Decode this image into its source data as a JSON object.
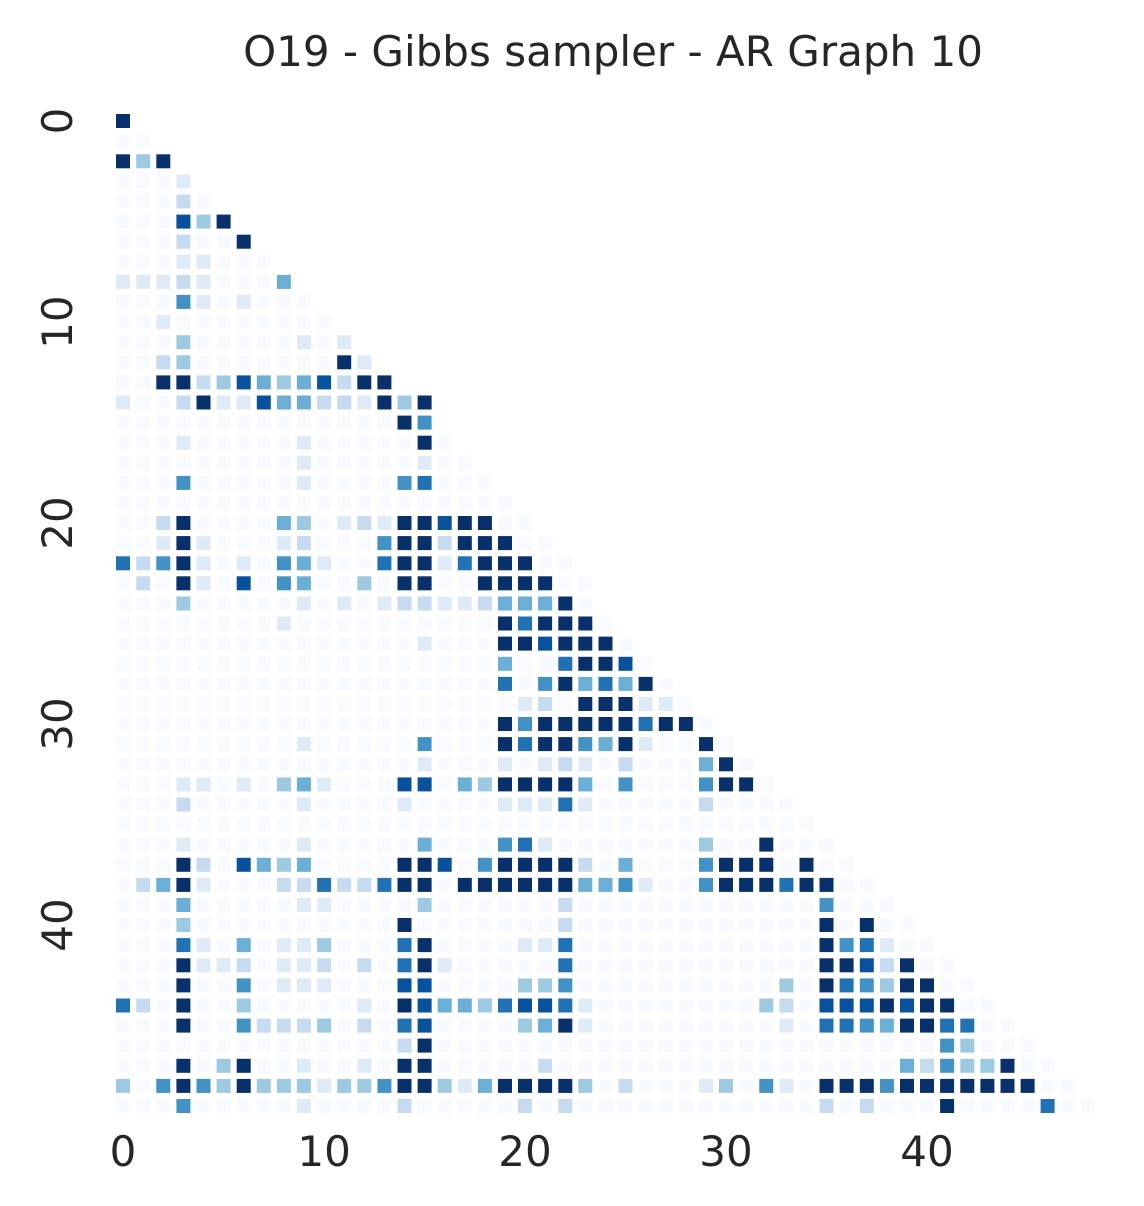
{
  "chart_data": {
    "type": "heatmap",
    "title": "O19 - Gibbs sampler - AR Graph 10",
    "n": 49,
    "mask": "upper-triangle",
    "colormap": "Blues",
    "colors": [
      "#f7fbff",
      "#deebf7",
      "#c6dbef",
      "#9ecae1",
      "#6baed6",
      "#4292c6",
      "#2171b5",
      "#08519c",
      "#08306b"
    ],
    "grid": false,
    "colorbar": false,
    "xticks": [
      0,
      10,
      20,
      30,
      40
    ],
    "yticks": [
      0,
      10,
      20,
      30,
      40
    ],
    "xticklabels": [
      "0",
      "10",
      "20",
      "30",
      "40"
    ],
    "yticklabels": [
      "0",
      "10",
      "20",
      "30",
      "40"
    ],
    "xlabel": "",
    "ylabel": "",
    "value_range": [
      0,
      8
    ],
    "value_scale": "0 = lightest blue, 8 = darkest navy (relative intensity, no colorbar shown)",
    "rows": [
      [
        8
      ],
      [
        0,
        0
      ],
      [
        8,
        3,
        8
      ],
      [
        0,
        0,
        0,
        1
      ],
      [
        0,
        0,
        0,
        2,
        0
      ],
      [
        0,
        0,
        0,
        7,
        3,
        8
      ],
      [
        0,
        0,
        0,
        2,
        0,
        0,
        8
      ],
      [
        0,
        0,
        0,
        1,
        1,
        0,
        0,
        0
      ],
      [
        1,
        1,
        1,
        2,
        1,
        0,
        0,
        0,
        4
      ],
      [
        0,
        0,
        0,
        5,
        1,
        0,
        1,
        0,
        0,
        0
      ],
      [
        0,
        0,
        1,
        0,
        0,
        0,
        0,
        0,
        0,
        0,
        0
      ],
      [
        0,
        0,
        0,
        3,
        0,
        0,
        0,
        0,
        0,
        1,
        0,
        1
      ],
      [
        0,
        0,
        2,
        3,
        0,
        0,
        0,
        0,
        0,
        0,
        0,
        8,
        1
      ],
      [
        0,
        0,
        8,
        8,
        2,
        3,
        7,
        4,
        3,
        4,
        7,
        2,
        8,
        8
      ],
      [
        1,
        0,
        0,
        2,
        8,
        1,
        1,
        7,
        4,
        4,
        2,
        2,
        1,
        8,
        3,
        8
      ],
      [
        0,
        0,
        0,
        0,
        0,
        0,
        0,
        0,
        0,
        0,
        0,
        0,
        0,
        0,
        8,
        5
      ],
      [
        0,
        0,
        0,
        1,
        0,
        0,
        0,
        0,
        0,
        1,
        0,
        0,
        0,
        0,
        0,
        8,
        0
      ],
      [
        0,
        0,
        0,
        0,
        0,
        0,
        0,
        0,
        0,
        1,
        0,
        0,
        0,
        0,
        0,
        1,
        0,
        0
      ],
      [
        0,
        0,
        0,
        5,
        0,
        0,
        0,
        0,
        0,
        1,
        0,
        0,
        0,
        0,
        5,
        6,
        0,
        0,
        0
      ],
      [
        0,
        0,
        0,
        0,
        0,
        0,
        0,
        0,
        0,
        0,
        0,
        0,
        0,
        0,
        0,
        0,
        0,
        0,
        0,
        0
      ],
      [
        0,
        0,
        2,
        8,
        0,
        0,
        0,
        0,
        4,
        3,
        0,
        1,
        2,
        1,
        8,
        8,
        7,
        8,
        8,
        0,
        0
      ],
      [
        0,
        0,
        1,
        8,
        1,
        0,
        0,
        0,
        1,
        2,
        0,
        0,
        0,
        5,
        8,
        8,
        2,
        8,
        8,
        8,
        0,
        0
      ],
      [
        6,
        2,
        5,
        8,
        1,
        0,
        1,
        0,
        5,
        4,
        1,
        0,
        0,
        6,
        8,
        8,
        1,
        6,
        8,
        8,
        8,
        0,
        0
      ],
      [
        0,
        2,
        0,
        8,
        1,
        0,
        7,
        0,
        5,
        4,
        0,
        0,
        3,
        0,
        8,
        8,
        0,
        0,
        8,
        8,
        8,
        8,
        0,
        0
      ],
      [
        0,
        0,
        0,
        3,
        0,
        0,
        0,
        0,
        0,
        1,
        0,
        1,
        0,
        1,
        2,
        2,
        1,
        1,
        2,
        4,
        4,
        4,
        8,
        0
      ],
      [
        0,
        0,
        0,
        0,
        0,
        0,
        0,
        0,
        1,
        0,
        0,
        0,
        0,
        0,
        0,
        0,
        0,
        0,
        0,
        8,
        6,
        8,
        8,
        8,
        0
      ],
      [
        0,
        0,
        0,
        0,
        0,
        0,
        0,
        0,
        0,
        0,
        0,
        0,
        0,
        0,
        0,
        1,
        0,
        0,
        0,
        8,
        8,
        7,
        8,
        8,
        8,
        0
      ],
      [
        0,
        0,
        0,
        0,
        0,
        0,
        0,
        0,
        0,
        0,
        0,
        0,
        0,
        0,
        0,
        0,
        0,
        0,
        0,
        4,
        0,
        0,
        6,
        8,
        8,
        7,
        0
      ],
      [
        0,
        0,
        0,
        0,
        0,
        0,
        0,
        0,
        0,
        0,
        0,
        0,
        0,
        0,
        0,
        0,
        0,
        0,
        0,
        6,
        0,
        5,
        8,
        4,
        6,
        4,
        8,
        0
      ],
      [
        0,
        0,
        0,
        0,
        0,
        0,
        0,
        0,
        0,
        0,
        0,
        0,
        0,
        0,
        0,
        0,
        0,
        0,
        0,
        0,
        1,
        2,
        0,
        8,
        8,
        8,
        1,
        1,
        0
      ],
      [
        0,
        0,
        0,
        0,
        0,
        0,
        0,
        0,
        0,
        0,
        0,
        0,
        0,
        0,
        0,
        0,
        0,
        0,
        0,
        8,
        5,
        8,
        8,
        8,
        8,
        8,
        6,
        8,
        8,
        0
      ],
      [
        0,
        0,
        0,
        0,
        0,
        0,
        0,
        0,
        0,
        1,
        0,
        0,
        0,
        0,
        0,
        5,
        0,
        0,
        0,
        8,
        6,
        8,
        8,
        5,
        4,
        8,
        1,
        0,
        0,
        8,
        0
      ],
      [
        0,
        0,
        0,
        0,
        0,
        0,
        0,
        0,
        0,
        0,
        0,
        0,
        0,
        0,
        0,
        1,
        0,
        0,
        0,
        1,
        0,
        1,
        2,
        1,
        0,
        2,
        0,
        0,
        0,
        4,
        8,
        0
      ],
      [
        0,
        0,
        0,
        1,
        1,
        0,
        1,
        0,
        3,
        4,
        1,
        0,
        0,
        0,
        7,
        7,
        0,
        4,
        3,
        8,
        8,
        8,
        8,
        4,
        0,
        5,
        0,
        0,
        0,
        5,
        8,
        8,
        0
      ],
      [
        0,
        0,
        0,
        2,
        0,
        0,
        0,
        0,
        0,
        1,
        0,
        0,
        0,
        0,
        1,
        0,
        0,
        0,
        0,
        1,
        1,
        1,
        6,
        1,
        0,
        0,
        0,
        0,
        0,
        2,
        0,
        0,
        0,
        0
      ],
      [
        0,
        0,
        0,
        0,
        0,
        0,
        0,
        0,
        0,
        0,
        0,
        0,
        0,
        0,
        0,
        0,
        0,
        0,
        0,
        0,
        0,
        0,
        0,
        0,
        0,
        0,
        0,
        0,
        0,
        0,
        0,
        0,
        0,
        0,
        0
      ],
      [
        0,
        0,
        0,
        1,
        0,
        0,
        0,
        0,
        0,
        1,
        0,
        0,
        0,
        0,
        0,
        4,
        0,
        0,
        0,
        5,
        6,
        1,
        0,
        0,
        0,
        0,
        0,
        0,
        0,
        3,
        0,
        0,
        8,
        0,
        0,
        0
      ],
      [
        0,
        0,
        0,
        8,
        2,
        0,
        7,
        4,
        3,
        4,
        0,
        0,
        0,
        0,
        8,
        8,
        7,
        0,
        5,
        8,
        8,
        8,
        8,
        2,
        0,
        4,
        0,
        0,
        0,
        5,
        8,
        8,
        8,
        0,
        8,
        0,
        0
      ],
      [
        0,
        2,
        4,
        8,
        1,
        0,
        0,
        0,
        2,
        2,
        6,
        2,
        2,
        6,
        8,
        8,
        0,
        8,
        8,
        8,
        8,
        8,
        8,
        4,
        4,
        5,
        1,
        0,
        0,
        5,
        8,
        8,
        8,
        6,
        8,
        8,
        0,
        0
      ],
      [
        0,
        0,
        0,
        4,
        0,
        0,
        0,
        0,
        0,
        1,
        1,
        0,
        0,
        0,
        0,
        3,
        0,
        0,
        0,
        0,
        0,
        0,
        2,
        0,
        0,
        0,
        0,
        0,
        0,
        0,
        0,
        0,
        0,
        0,
        0,
        5,
        0,
        0,
        0
      ],
      [
        0,
        0,
        0,
        3,
        0,
        0,
        0,
        0,
        0,
        0,
        0,
        0,
        0,
        0,
        8,
        0,
        0,
        0,
        0,
        0,
        0,
        0,
        2,
        0,
        0,
        0,
        0,
        0,
        0,
        0,
        0,
        0,
        0,
        0,
        0,
        8,
        0,
        8,
        0,
        0
      ],
      [
        0,
        0,
        0,
        6,
        1,
        0,
        4,
        0,
        1,
        1,
        3,
        0,
        0,
        0,
        6,
        8,
        0,
        0,
        0,
        0,
        1,
        1,
        6,
        0,
        0,
        0,
        0,
        0,
        0,
        0,
        0,
        0,
        0,
        0,
        0,
        8,
        5,
        6,
        1,
        0,
        0
      ],
      [
        0,
        0,
        0,
        8,
        1,
        1,
        2,
        0,
        1,
        1,
        2,
        0,
        2,
        0,
        6,
        8,
        1,
        0,
        0,
        0,
        0,
        0,
        6,
        0,
        0,
        0,
        0,
        0,
        0,
        0,
        0,
        0,
        0,
        0,
        0,
        8,
        8,
        7,
        2,
        8,
        0,
        0
      ],
      [
        0,
        0,
        0,
        8,
        0,
        0,
        5,
        0,
        1,
        1,
        1,
        0,
        0,
        0,
        7,
        7,
        0,
        0,
        0,
        0,
        3,
        3,
        5,
        0,
        0,
        0,
        0,
        0,
        0,
        0,
        0,
        0,
        0,
        3,
        0,
        8,
        6,
        5,
        3,
        8,
        8,
        0,
        0
      ],
      [
        6,
        2,
        0,
        8,
        0,
        0,
        3,
        0,
        0,
        0,
        0,
        0,
        1,
        0,
        8,
        7,
        4,
        4,
        3,
        6,
        7,
        7,
        6,
        1,
        0,
        0,
        0,
        0,
        0,
        0,
        0,
        0,
        3,
        2,
        0,
        7,
        7,
        7,
        8,
        7,
        8,
        8,
        0,
        0
      ],
      [
        0,
        0,
        0,
        8,
        0,
        0,
        5,
        2,
        2,
        2,
        3,
        0,
        2,
        0,
        6,
        7,
        0,
        0,
        0,
        0,
        3,
        4,
        8,
        1,
        0,
        0,
        0,
        0,
        0,
        0,
        0,
        0,
        0,
        1,
        0,
        6,
        6,
        5,
        4,
        8,
        8,
        6,
        6,
        0,
        0
      ],
      [
        0,
        0,
        0,
        0,
        0,
        0,
        0,
        0,
        0,
        0,
        0,
        0,
        0,
        0,
        2,
        8,
        0,
        0,
        0,
        0,
        0,
        0,
        0,
        0,
        0,
        0,
        0,
        0,
        0,
        0,
        0,
        0,
        0,
        0,
        0,
        0,
        0,
        0,
        0,
        0,
        0,
        5,
        3,
        0,
        0,
        0
      ],
      [
        0,
        0,
        0,
        8,
        0,
        3,
        8,
        0,
        0,
        1,
        0,
        0,
        1,
        0,
        8,
        8,
        0,
        0,
        0,
        0,
        0,
        2,
        0,
        0,
        0,
        0,
        0,
        0,
        0,
        0,
        0,
        0,
        0,
        0,
        0,
        0,
        0,
        0,
        0,
        4,
        2,
        5,
        3,
        3,
        8,
        0,
        0
      ],
      [
        3,
        0,
        5,
        8,
        5,
        3,
        8,
        3,
        3,
        3,
        1,
        3,
        3,
        5,
        8,
        8,
        3,
        1,
        4,
        8,
        8,
        8,
        8,
        3,
        0,
        2,
        0,
        0,
        0,
        1,
        3,
        0,
        5,
        1,
        0,
        8,
        8,
        8,
        5,
        8,
        8,
        8,
        8,
        8,
        8,
        8,
        0,
        0
      ],
      [
        0,
        0,
        0,
        5,
        0,
        0,
        0,
        0,
        0,
        1,
        0,
        0,
        0,
        0,
        2,
        0,
        0,
        0,
        0,
        0,
        2,
        0,
        2,
        0,
        0,
        0,
        0,
        0,
        0,
        0,
        0,
        0,
        0,
        0,
        0,
        2,
        0,
        2,
        0,
        0,
        0,
        8,
        0,
        0,
        0,
        0,
        6,
        0,
        0
      ]
    ]
  }
}
